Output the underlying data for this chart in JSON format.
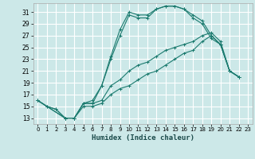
{
  "xlabel": "Humidex (Indice chaleur)",
  "bg_color": "#cce8e8",
  "grid_color": "#ffffff",
  "line_color": "#1a7a6e",
  "xlim": [
    -0.5,
    23.5
  ],
  "ylim": [
    12,
    32.5
  ],
  "yticks": [
    13,
    15,
    17,
    19,
    21,
    23,
    25,
    27,
    29,
    31
  ],
  "xticks": [
    0,
    1,
    2,
    3,
    4,
    5,
    6,
    7,
    8,
    9,
    10,
    11,
    12,
    13,
    14,
    15,
    16,
    17,
    18,
    19,
    20,
    21,
    22,
    23
  ],
  "series1_x": [
    0,
    1,
    2,
    3,
    4,
    5,
    6,
    7,
    8,
    9,
    10,
    11,
    12,
    13,
    14,
    15,
    16,
    17,
    18,
    19,
    20,
    21,
    22
  ],
  "series1_y": [
    16,
    15,
    14.5,
    13,
    13,
    15.5,
    15.5,
    18.5,
    23.5,
    28,
    31,
    30.5,
    30.5,
    31.5,
    32,
    32,
    31.5,
    30.5,
    29.5,
    27,
    25.5,
    21,
    20
  ],
  "series2_x": [
    0,
    1,
    2,
    3,
    4,
    5,
    6,
    7,
    8,
    9,
    10,
    11,
    12,
    13,
    14,
    15,
    16,
    17,
    18,
    19,
    20,
    21,
    22
  ],
  "series2_y": [
    16,
    15,
    14.5,
    13,
    13,
    15.5,
    16,
    18.5,
    23,
    27,
    30.5,
    30,
    30,
    31.5,
    32,
    32,
    31.5,
    30,
    29,
    26.5,
    25.5,
    21,
    20
  ],
  "series3_x": [
    0,
    3,
    4,
    5,
    6,
    7,
    8,
    9,
    10,
    11,
    12,
    13,
    14,
    15,
    16,
    17,
    18,
    19,
    20,
    21,
    22
  ],
  "series3_y": [
    16,
    13,
    13,
    15.5,
    15.5,
    16,
    18.5,
    19.5,
    21,
    22,
    22.5,
    23.5,
    24.5,
    25,
    25.5,
    26,
    27,
    27.5,
    26,
    21,
    20
  ],
  "series4_x": [
    0,
    3,
    4,
    5,
    6,
    7,
    8,
    9,
    10,
    11,
    12,
    13,
    14,
    15,
    16,
    17,
    18,
    19,
    20,
    21,
    22
  ],
  "series4_y": [
    16,
    13,
    13,
    15,
    15,
    15.5,
    17,
    18,
    18.5,
    19.5,
    20.5,
    21,
    22,
    23,
    24,
    24.5,
    26,
    27,
    25.5,
    21,
    20
  ]
}
